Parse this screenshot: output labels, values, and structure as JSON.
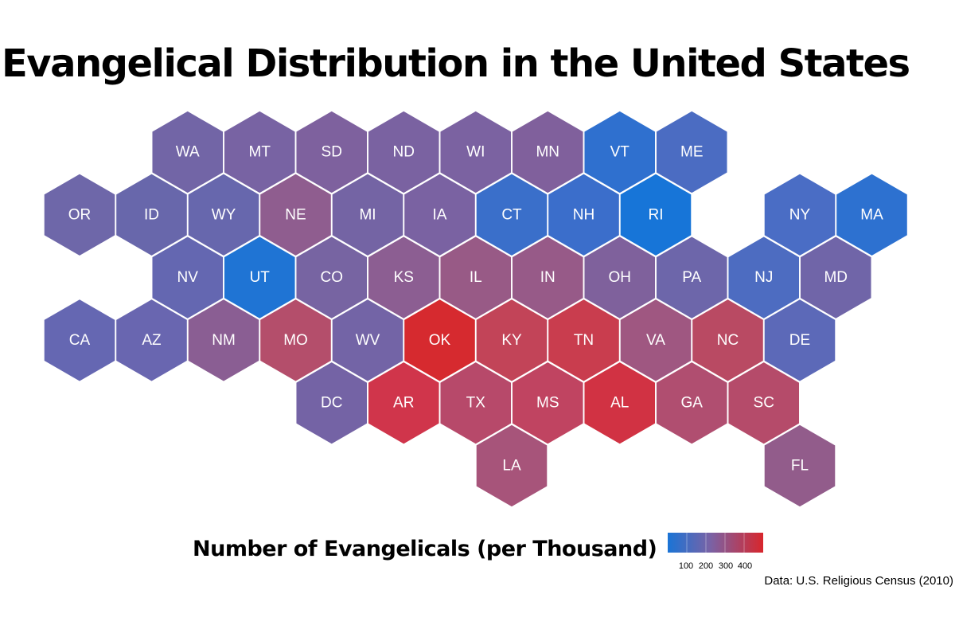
{
  "title": "Evangelical Distribution in the United States",
  "legend": {
    "title": "Number of Evangelicals (per Thousand)",
    "ticks": [
      "100",
      "200",
      "300",
      "400"
    ],
    "color_low": "#1a74d6",
    "color_mid": "#7a62a5",
    "color_high": "#d8262c"
  },
  "source": "Data: U.S. Religious Census (2010)",
  "states": [
    {
      "abbr": "WA",
      "row": 0,
      "col": 1,
      "color": "#7265a6"
    },
    {
      "abbr": "MT",
      "row": 0,
      "col": 2,
      "color": "#7863a3"
    },
    {
      "abbr": "SD",
      "row": 0,
      "col": 3,
      "color": "#7e619e"
    },
    {
      "abbr": "ND",
      "row": 0,
      "col": 4,
      "color": "#7a62a1"
    },
    {
      "abbr": "WI",
      "row": 0,
      "col": 5,
      "color": "#7b62a1"
    },
    {
      "abbr": "MN",
      "row": 0,
      "col": 6,
      "color": "#80609c"
    },
    {
      "abbr": "VT",
      "row": 0,
      "col": 7,
      "color": "#2f70cf"
    },
    {
      "abbr": "ME",
      "row": 0,
      "col": 8,
      "color": "#4b6cc2"
    },
    {
      "abbr": "OR",
      "row": 1,
      "col": 0,
      "color": "#6e67a9"
    },
    {
      "abbr": "ID",
      "row": 1,
      "col": 1,
      "color": "#6867ab"
    },
    {
      "abbr": "WY",
      "row": 1,
      "col": 2,
      "color": "#6767ad"
    },
    {
      "abbr": "NE",
      "row": 1,
      "col": 3,
      "color": "#8f5d8f"
    },
    {
      "abbr": "MI",
      "row": 1,
      "col": 4,
      "color": "#7464a4"
    },
    {
      "abbr": "IA",
      "row": 1,
      "col": 5,
      "color": "#7a62a2"
    },
    {
      "abbr": "CT",
      "row": 1,
      "col": 6,
      "color": "#3a6fca"
    },
    {
      "abbr": "NH",
      "row": 1,
      "col": 7,
      "color": "#3b6ecb"
    },
    {
      "abbr": "RI",
      "row": 1,
      "col": 8,
      "color": "#1775d8"
    },
    {
      "abbr": "NY",
      "row": 1,
      "col": 10,
      "color": "#4a6dc5"
    },
    {
      "abbr": "MA",
      "row": 1,
      "col": 11,
      "color": "#2d71d0"
    },
    {
      "abbr": "NV",
      "row": 2,
      "col": 1,
      "color": "#6467b1"
    },
    {
      "abbr": "UT",
      "row": 2,
      "col": 2,
      "color": "#1f74d4"
    },
    {
      "abbr": "CO",
      "row": 2,
      "col": 3,
      "color": "#7764a2"
    },
    {
      "abbr": "KS",
      "row": 2,
      "col": 4,
      "color": "#8c5e92"
    },
    {
      "abbr": "IL",
      "row": 2,
      "col": 5,
      "color": "#985a86"
    },
    {
      "abbr": "IN",
      "row": 2,
      "col": 6,
      "color": "#975a88"
    },
    {
      "abbr": "OH",
      "row": 2,
      "col": 7,
      "color": "#7f619c"
    },
    {
      "abbr": "PA",
      "row": 2,
      "col": 8,
      "color": "#6d66aa"
    },
    {
      "abbr": "NJ",
      "row": 2,
      "col": 9,
      "color": "#4d6cc1"
    },
    {
      "abbr": "MD",
      "row": 2,
      "col": 10,
      "color": "#7065a8"
    },
    {
      "abbr": "CA",
      "row": 3,
      "col": 0,
      "color": "#6567b2"
    },
    {
      "abbr": "AZ",
      "row": 3,
      "col": 1,
      "color": "#6966b0"
    },
    {
      "abbr": "NM",
      "row": 3,
      "col": 2,
      "color": "#8a5e93"
    },
    {
      "abbr": "MO",
      "row": 3,
      "col": 3,
      "color": "#b44e6b"
    },
    {
      "abbr": "WV",
      "row": 3,
      "col": 4,
      "color": "#7364a6"
    },
    {
      "abbr": "OK",
      "row": 3,
      "col": 5,
      "color": "#d62a2f"
    },
    {
      "abbr": "KY",
      "row": 3,
      "col": 6,
      "color": "#c24458"
    },
    {
      "abbr": "TN",
      "row": 3,
      "col": 7,
      "color": "#c93d4e"
    },
    {
      "abbr": "VA",
      "row": 3,
      "col": 8,
      "color": "#9f5781"
    },
    {
      "abbr": "NC",
      "row": 3,
      "col": 9,
      "color": "#b94a63"
    },
    {
      "abbr": "DE",
      "row": 3,
      "col": 10,
      "color": "#5c69b8"
    },
    {
      "abbr": "DC",
      "row": 4,
      "col": 3,
      "color": "#7463a5"
    },
    {
      "abbr": "AR",
      "row": 4,
      "col": 4,
      "color": "#d0354b"
    },
    {
      "abbr": "TX",
      "row": 4,
      "col": 5,
      "color": "#b7496a"
    },
    {
      "abbr": "MS",
      "row": 4,
      "col": 6,
      "color": "#c04461"
    },
    {
      "abbr": "AL",
      "row": 4,
      "col": 7,
      "color": "#d13243"
    },
    {
      "abbr": "GA",
      "row": 4,
      "col": 8,
      "color": "#b04e70"
    },
    {
      "abbr": "SC",
      "row": 4,
      "col": 9,
      "color": "#b54b6a"
    },
    {
      "abbr": "LA",
      "row": 5,
      "col": 6,
      "color": "#a7547a"
    },
    {
      "abbr": "FL",
      "row": 5,
      "col": 10,
      "color": "#925c8b"
    }
  ]
}
